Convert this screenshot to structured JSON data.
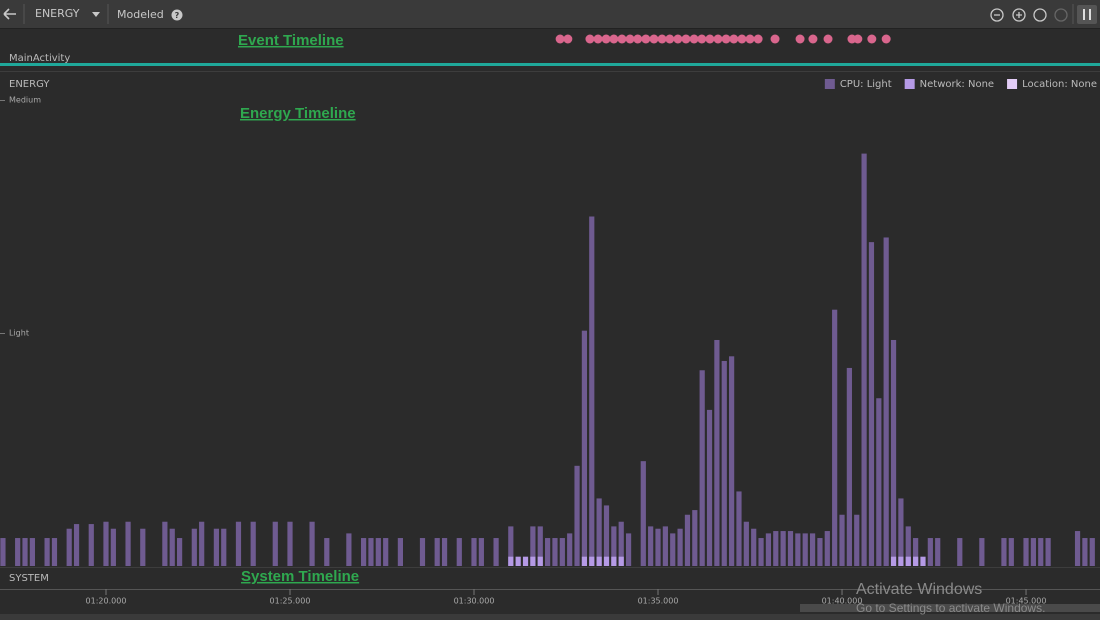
{
  "toolbar": {
    "dropdown": "ENERGY",
    "mode": "Modeled"
  },
  "event_timeline": {
    "annotation": "Event Timeline",
    "label": "MainActivity",
    "events": [
      92.34,
      92.55,
      93.15,
      93.37,
      93.59,
      93.8,
      94.02,
      94.24,
      94.45,
      94.67,
      94.89,
      95.11,
      95.32,
      95.54,
      95.76,
      95.98,
      96.19,
      96.41,
      96.63,
      96.85,
      97.06,
      97.28,
      97.5,
      97.72,
      98.18,
      98.86,
      99.21,
      99.62,
      100.27,
      100.43,
      100.81,
      101.2
    ]
  },
  "chart_data": {
    "type": "bar",
    "title": "ENERGY",
    "annotation": "Energy Timeline",
    "xlim": [
      77.12,
      107.01
    ],
    "xticks": [
      {
        "value": 80,
        "label": "01:20.000"
      },
      {
        "value": 85,
        "label": "01:25.000"
      },
      {
        "value": 90,
        "label": "01:30.000"
      },
      {
        "value": 95,
        "label": "01:35.000"
      },
      {
        "value": 100,
        "label": "01:40.000"
      },
      {
        "value": 105,
        "label": "01:45.000"
      }
    ],
    "ylim": [
      0,
      2
    ],
    "yticks": [
      {
        "value": 1,
        "label": "Light"
      },
      {
        "value": 2,
        "label": "Medium"
      }
    ],
    "grid": false,
    "legend": "top-right",
    "series": [
      {
        "name": "CPU: Light",
        "color": "#6f5b91",
        "x": [
          77.2,
          77.6,
          77.8,
          78.0,
          78.4,
          78.6,
          79.0,
          79.2,
          79.6,
          80.0,
          80.2,
          80.6,
          81.0,
          81.6,
          81.8,
          82.0,
          82.4,
          82.6,
          83.0,
          83.2,
          83.6,
          84.0,
          84.6,
          85.0,
          85.6,
          86.0,
          86.6,
          87.0,
          87.2,
          87.4,
          87.6,
          88.0,
          88.6,
          89.0,
          89.2,
          89.6,
          90.0,
          90.2,
          90.6,
          91.0,
          91.6,
          91.8,
          92.0,
          92.2,
          92.4,
          92.6,
          92.8,
          93.0,
          93.2,
          93.4,
          93.6,
          93.8,
          94.0,
          94.2,
          94.6,
          94.8,
          95.0,
          95.2,
          95.4,
          95.6,
          95.8,
          96.0,
          96.2,
          96.4,
          96.6,
          96.8,
          97.0,
          97.2,
          97.4,
          97.6,
          97.8,
          98.0,
          98.2,
          98.4,
          98.6,
          98.8,
          99.0,
          99.2,
          99.4,
          99.6,
          99.8,
          100.0,
          100.2,
          100.4,
          100.6,
          100.8,
          101.0,
          101.2,
          101.4,
          101.6,
          101.8,
          102.0,
          102.4,
          102.6,
          103.2,
          103.8,
          104.4,
          104.6,
          105.0,
          105.2,
          105.4,
          105.6,
          106.4,
          106.6,
          106.8
        ],
        "values": [
          0.12,
          0.12,
          0.12,
          0.12,
          0.12,
          0.12,
          0.16,
          0.18,
          0.18,
          0.19,
          0.16,
          0.19,
          0.16,
          0.19,
          0.16,
          0.12,
          0.16,
          0.19,
          0.16,
          0.16,
          0.19,
          0.19,
          0.19,
          0.19,
          0.19,
          0.12,
          0.14,
          0.12,
          0.12,
          0.12,
          0.12,
          0.12,
          0.12,
          0.12,
          0.12,
          0.12,
          0.12,
          0.12,
          0.12,
          0.17,
          0.17,
          0.17,
          0.12,
          0.12,
          0.12,
          0.14,
          0.43,
          1.01,
          1.5,
          0.29,
          0.26,
          0.17,
          0.19,
          0.14,
          0.45,
          0.17,
          0.16,
          0.17,
          0.14,
          0.16,
          0.22,
          0.24,
          0.84,
          0.67,
          0.97,
          0.88,
          0.9,
          0.32,
          0.19,
          0.16,
          0.12,
          0.14,
          0.15,
          0.15,
          0.15,
          0.14,
          0.14,
          0.14,
          0.12,
          0.15,
          1.1,
          0.22,
          0.85,
          0.22,
          1.77,
          1.39,
          0.72,
          1.41,
          0.97,
          0.29,
          0.17,
          0.12,
          0.12,
          0.12,
          0.12,
          0.12,
          0.12,
          0.12,
          0.12,
          0.12,
          0.12,
          0.12,
          0.15,
          0.12,
          0.12
        ]
      },
      {
        "name": "Network: None",
        "color": "#b59ae6",
        "x": [
          91.0,
          91.2,
          91.4,
          91.6,
          91.8,
          93.0,
          93.2,
          93.4,
          93.6,
          93.8,
          94.0,
          101.4,
          101.6,
          101.8,
          102.0,
          102.2
        ],
        "values": [
          0.04,
          0.04,
          0.04,
          0.04,
          0.04,
          0.04,
          0.04,
          0.04,
          0.04,
          0.04,
          0.04,
          0.04,
          0.04,
          0.04,
          0.04,
          0.04
        ]
      },
      {
        "name": "Location: None",
        "color": "#e3cdf7",
        "x": [],
        "values": []
      }
    ]
  },
  "system_timeline": {
    "label": "SYSTEM",
    "annotation": "System Timeline"
  },
  "watermark": {
    "title": "Activate Windows",
    "subtitle": "Go to Settings to activate Windows."
  }
}
